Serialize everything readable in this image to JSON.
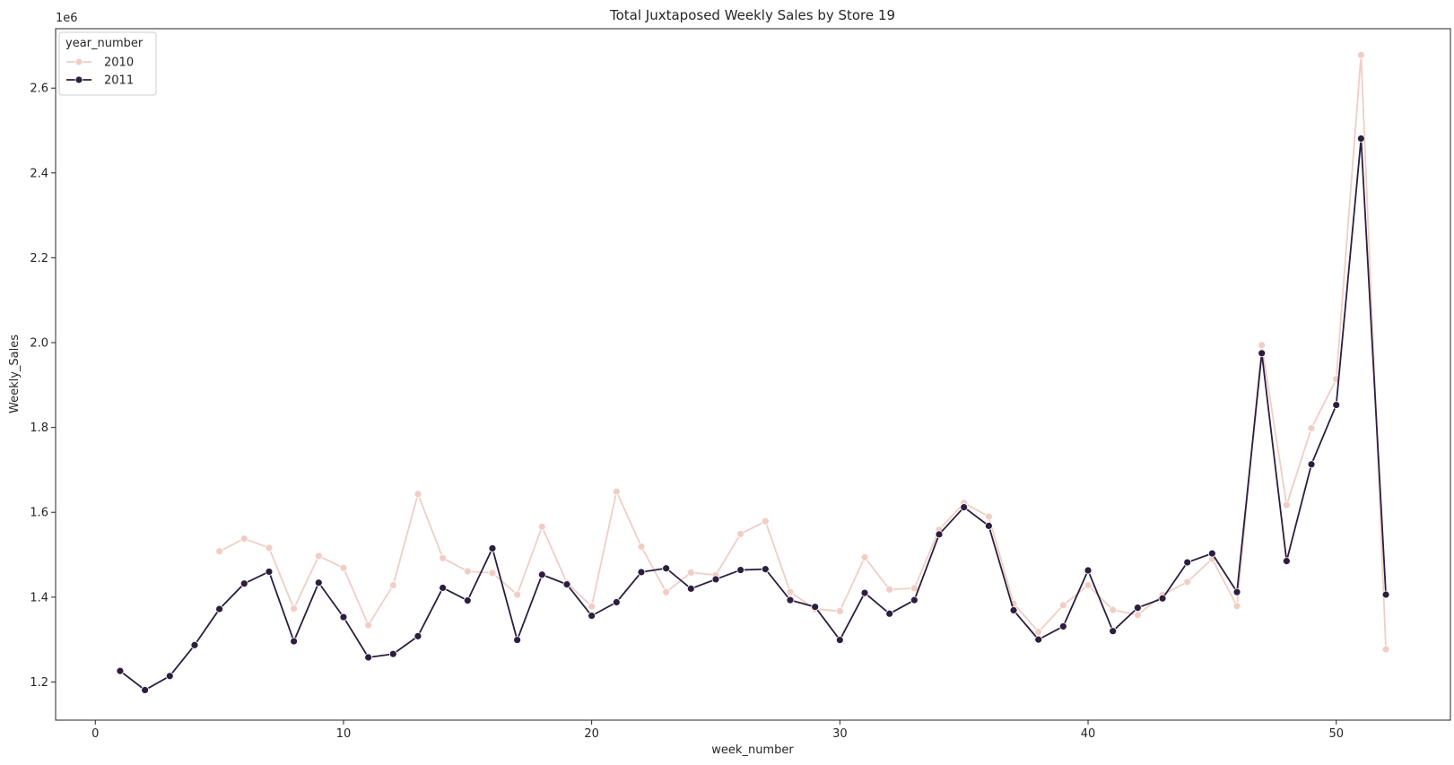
{
  "chart_data": {
    "type": "line",
    "title": "Total Juxtaposed Weekly Sales by Store 19",
    "xlabel": "week_number",
    "ylabel": "Weekly_Sales",
    "y_offset_text": "1e6",
    "xlim": [
      -1.6,
      54.6
    ],
    "ylim": [
      1.11,
      2.74
    ],
    "xticks": [
      0,
      10,
      20,
      30,
      40,
      50
    ],
    "yticks": [
      1.2,
      1.4,
      1.6,
      1.8,
      2.0,
      2.2,
      2.4,
      2.6
    ],
    "ytick_labels": [
      "1.2",
      "1.4",
      "1.6",
      "1.8",
      "2.0",
      "2.2",
      "2.4",
      "2.6"
    ],
    "grid": false,
    "legend": {
      "title": "year_number",
      "placement": "top-left"
    },
    "series": [
      {
        "name": "2010",
        "color": "#f0cec4",
        "x": [
          5,
          6,
          7,
          8,
          9,
          10,
          11,
          12,
          13,
          14,
          15,
          16,
          17,
          18,
          19,
          20,
          21,
          22,
          23,
          24,
          25,
          26,
          27,
          28,
          29,
          30,
          31,
          32,
          33,
          34,
          35,
          36,
          37,
          38,
          39,
          40,
          41,
          42,
          43,
          44,
          45,
          46,
          47,
          48,
          49,
          50,
          51,
          52
        ],
        "y": [
          1.508,
          1.538,
          1.516,
          1.373,
          1.497,
          1.469,
          1.334,
          1.428,
          1.643,
          1.492,
          1.461,
          1.457,
          1.406,
          1.566,
          1.434,
          1.378,
          1.649,
          1.519,
          1.412,
          1.458,
          1.452,
          1.549,
          1.579,
          1.412,
          1.372,
          1.367,
          1.494,
          1.418,
          1.421,
          1.559,
          1.622,
          1.59,
          1.385,
          1.318,
          1.381,
          1.428,
          1.37,
          1.358,
          1.405,
          1.436,
          1.49,
          1.379,
          1.994,
          1.617,
          1.798,
          1.914,
          2.678,
          1.277
        ]
      },
      {
        "name": "2011",
        "color": "#2d1e3e",
        "x": [
          1,
          2,
          3,
          4,
          5,
          6,
          7,
          8,
          9,
          10,
          11,
          12,
          13,
          14,
          15,
          16,
          17,
          18,
          19,
          20,
          21,
          22,
          23,
          24,
          25,
          26,
          27,
          28,
          29,
          30,
          31,
          32,
          33,
          34,
          35,
          36,
          37,
          38,
          39,
          40,
          41,
          42,
          43,
          44,
          45,
          46,
          47,
          48,
          49,
          50,
          51,
          52
        ],
        "y": [
          1.226,
          1.181,
          1.214,
          1.287,
          1.372,
          1.432,
          1.46,
          1.296,
          1.434,
          1.353,
          1.258,
          1.266,
          1.308,
          1.422,
          1.392,
          1.515,
          1.299,
          1.453,
          1.43,
          1.356,
          1.388,
          1.459,
          1.468,
          1.42,
          1.442,
          1.464,
          1.466,
          1.393,
          1.377,
          1.299,
          1.41,
          1.361,
          1.393,
          1.548,
          1.612,
          1.568,
          1.369,
          1.3,
          1.331,
          1.463,
          1.32,
          1.375,
          1.397,
          1.482,
          1.503,
          1.412,
          1.975,
          1.485,
          1.713,
          1.853,
          2.481,
          1.406
        ]
      }
    ]
  }
}
